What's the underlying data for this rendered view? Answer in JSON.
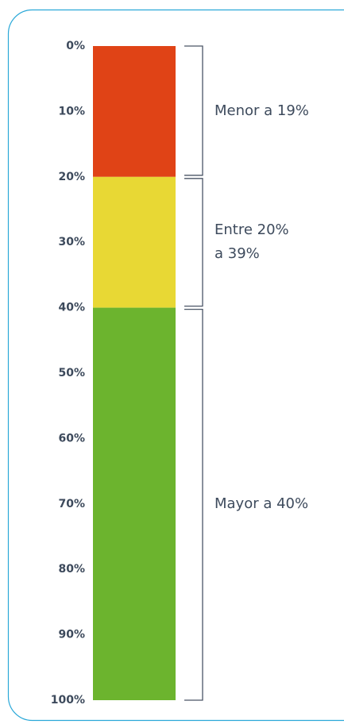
{
  "chart_data": {
    "type": "stacked_bar",
    "segments": [
      {
        "name": "Menor a 19%",
        "color": "#e04316",
        "value": 20
      },
      {
        "name": "Entre 20%\na 39%",
        "color": "#e8d834",
        "value": 20
      },
      {
        "name": "Mayor a 40%",
        "color": "#6cb42e",
        "value": 60
      }
    ],
    "ylim": [
      0,
      100
    ],
    "y_inverted": true,
    "yticks": [
      {
        "value": 0,
        "label": "0%"
      },
      {
        "value": 10,
        "label": "10%"
      },
      {
        "value": 20,
        "label": "20%"
      },
      {
        "value": 30,
        "label": "30%"
      },
      {
        "value": 40,
        "label": "40%"
      },
      {
        "value": 50,
        "label": "50%"
      },
      {
        "value": 60,
        "label": "60%"
      },
      {
        "value": 70,
        "label": "70%"
      },
      {
        "value": 80,
        "label": "80%"
      },
      {
        "value": 90,
        "label": "90%"
      },
      {
        "value": 100,
        "label": "100%"
      }
    ]
  }
}
